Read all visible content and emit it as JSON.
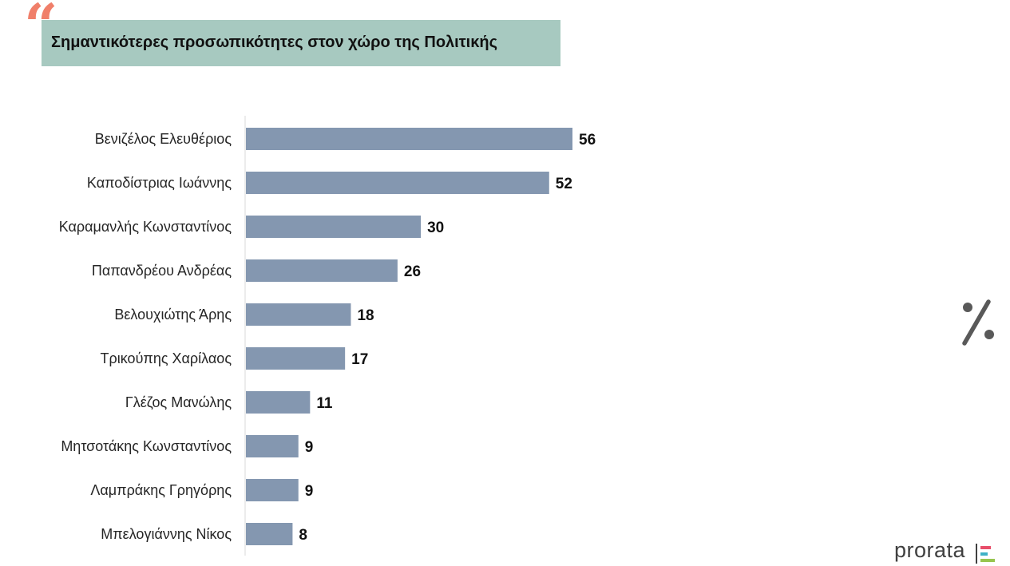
{
  "header": {
    "quote_glyph": "“",
    "title": "Σημαντικότερες προσωπικότητες στον χώρο της Πολιτικής"
  },
  "chart_data": {
    "type": "bar",
    "orientation": "horizontal",
    "categories": [
      "Βενιζέλος Ελευθέριος",
      "Καποδίστριας Ιωάννης",
      "Καραμανλής Κωνσταντίνος",
      "Παπανδρέου Ανδρέας",
      "Βελουχιώτης Άρης",
      "Τρικούπης Χαρίλαος",
      "Γλέζος Μανώλης",
      "Μητσοτάκης Κωνσταντίνος",
      "Λαμπράκης Γρηγόρης",
      "Μπελογιάννης Νίκος"
    ],
    "values": [
      56,
      52,
      30,
      26,
      18,
      17,
      11,
      9,
      9,
      8
    ],
    "unit_symbol": "%",
    "bar_color": "#8497b0"
  },
  "brand": {
    "name": "prorata",
    "colors": [
      "#e84e6a",
      "#3fb1c6",
      "#97c54f"
    ]
  },
  "colors": {
    "quote": "#f07f6a",
    "title_banner": "#a7c9c0",
    "percent_icon": "#595959"
  }
}
